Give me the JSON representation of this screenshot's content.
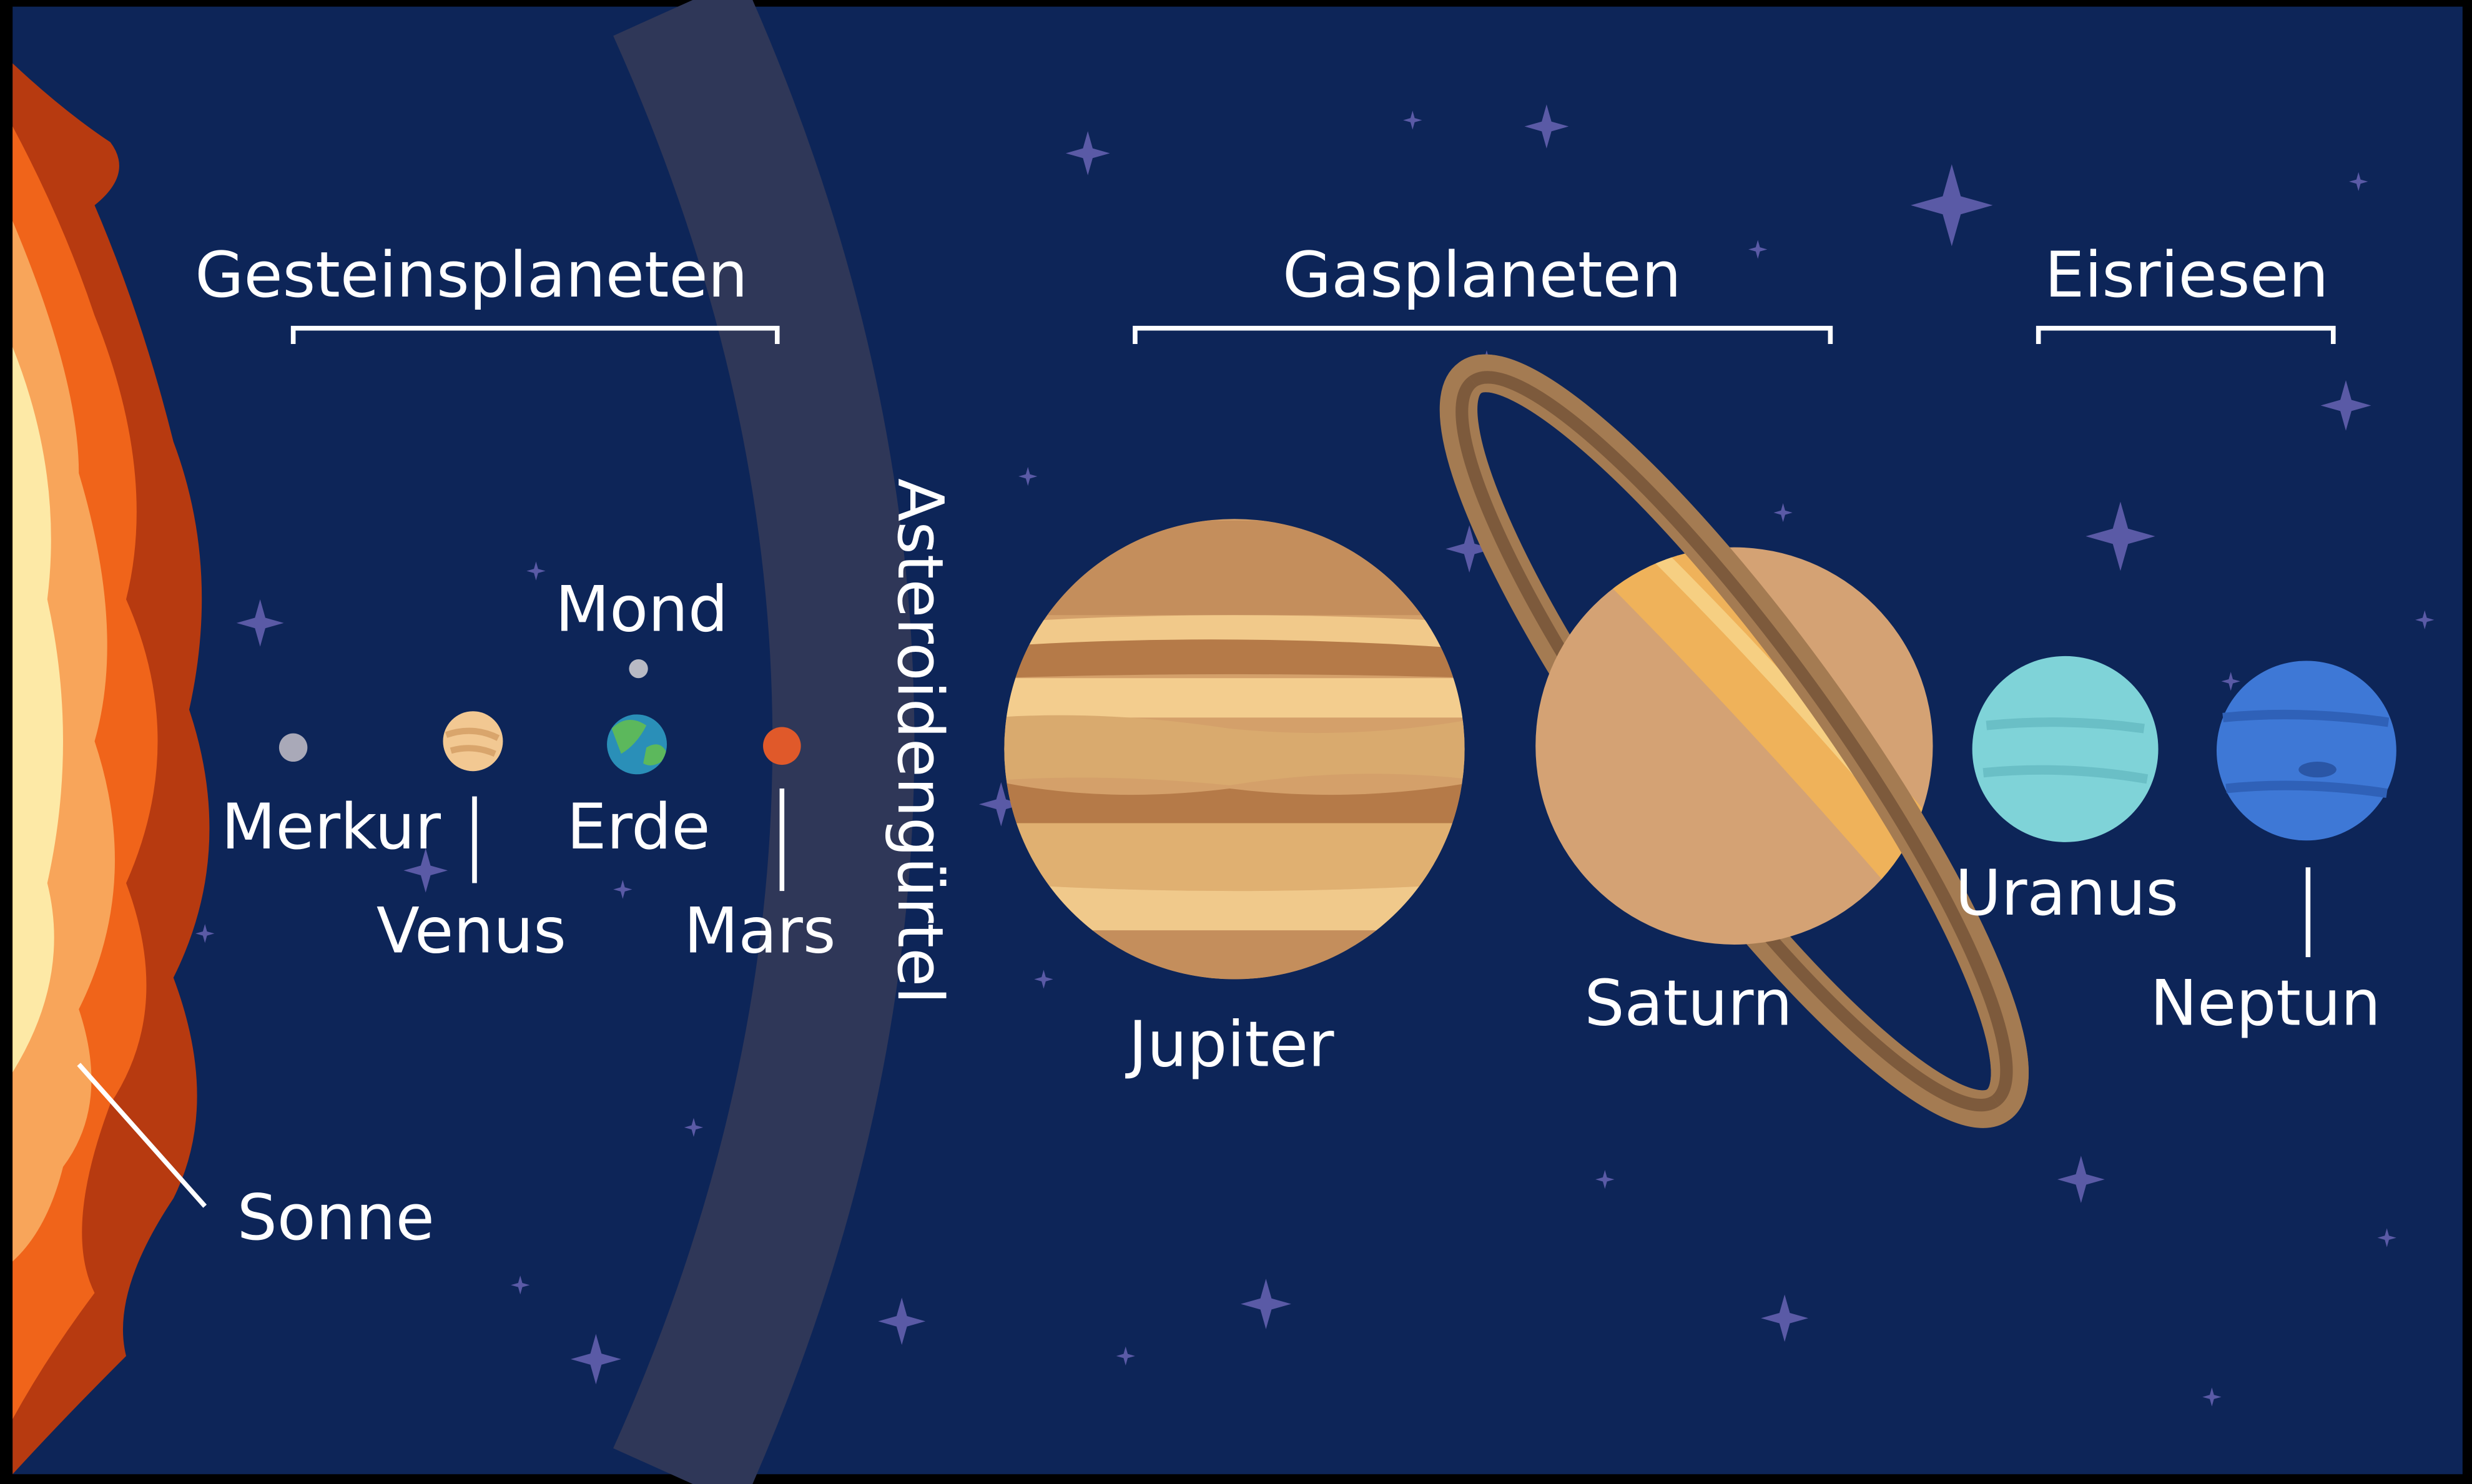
{
  "groups": [
    {
      "label": "Gesteinsplaneten"
    },
    {
      "label": "Gasplaneten"
    },
    {
      "label": "Eisriesen"
    }
  ],
  "sun": {
    "label": "Sonne"
  },
  "asteroid_belt": {
    "label": "Asteroidengürtel"
  },
  "moon": {
    "label": "Mond"
  },
  "planets": [
    {
      "label": "Merkur"
    },
    {
      "label": "Venus"
    },
    {
      "label": "Erde"
    },
    {
      "label": "Mars"
    },
    {
      "label": "Jupiter"
    },
    {
      "label": "Saturn"
    },
    {
      "label": "Uranus"
    },
    {
      "label": "Neptun"
    }
  ]
}
